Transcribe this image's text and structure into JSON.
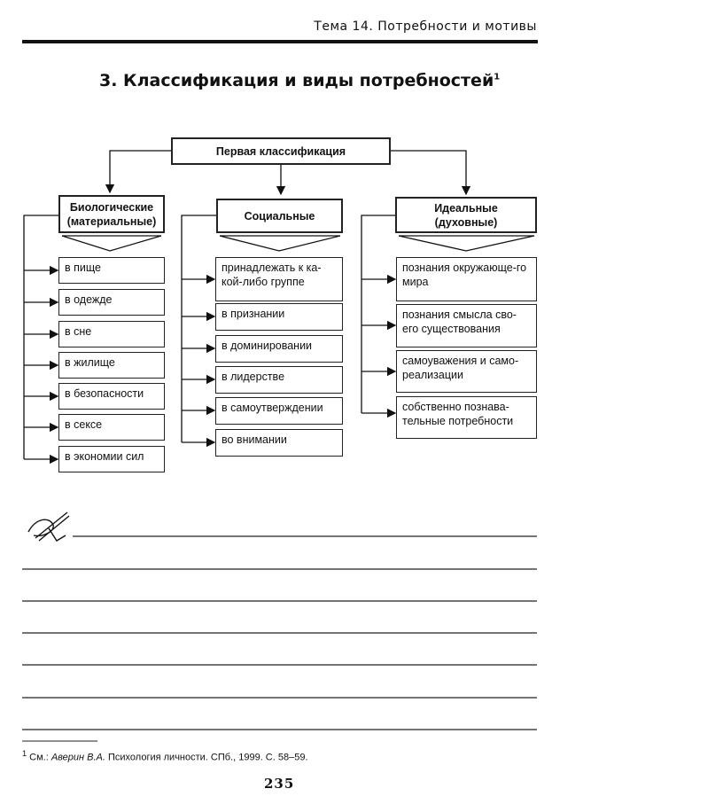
{
  "header": {
    "running_title": "Тема 14. Потребности и мотивы"
  },
  "section": {
    "title": "3. Классификация и виды потребностей",
    "footnote_mark": "1"
  },
  "diagram": {
    "root": "Первая классификация",
    "columns": [
      {
        "title": "Биологические (материальные)",
        "items": [
          "в пище",
          "в одежде",
          "в сне",
          "в жилище",
          "в безопасности",
          "в сексе",
          "в экономии сил"
        ]
      },
      {
        "title": "Социальные",
        "items": [
          "принадлежать к ка-кой-либо группе",
          "в признании",
          "в доминировании",
          "в лидерстве",
          "в самоутверждении",
          "во внимании"
        ]
      },
      {
        "title": "Идеальные (духовные)",
        "items": [
          "познания окружающе-го мира",
          "познания смысла сво-его существования",
          "самоуважения и само-реализации",
          "собственно познава-тельные потребности"
        ]
      }
    ]
  },
  "notes": {
    "icon": "pen-writing-icon",
    "lines": 7
  },
  "footnote": {
    "mark": "1",
    "prefix": "См.: ",
    "author": "Аверин В.А.",
    "rest": " Психология личности. СПб., 1999. С. 58–59."
  },
  "page_number": "235"
}
